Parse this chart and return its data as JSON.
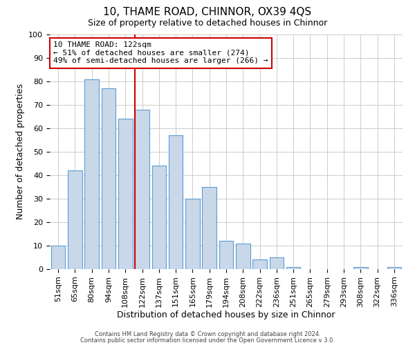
{
  "title": "10, THAME ROAD, CHINNOR, OX39 4QS",
  "subtitle": "Size of property relative to detached houses in Chinnor",
  "xlabel": "Distribution of detached houses by size in Chinnor",
  "ylabel": "Number of detached properties",
  "footer_line1": "Contains HM Land Registry data © Crown copyright and database right 2024.",
  "footer_line2": "Contains public sector information licensed under the Open Government Licence v 3.0.",
  "bar_labels": [
    "51sqm",
    "65sqm",
    "80sqm",
    "94sqm",
    "108sqm",
    "122sqm",
    "137sqm",
    "151sqm",
    "165sqm",
    "179sqm",
    "194sqm",
    "208sqm",
    "222sqm",
    "236sqm",
    "251sqm",
    "265sqm",
    "279sqm",
    "293sqm",
    "308sqm",
    "322sqm",
    "336sqm"
  ],
  "bar_values": [
    10,
    42,
    81,
    77,
    64,
    68,
    44,
    57,
    30,
    35,
    12,
    11,
    4,
    5,
    1,
    0,
    0,
    0,
    1,
    0,
    1
  ],
  "bar_color": "#c8d8e8",
  "bar_edge_color": "#5b9bd5",
  "vline_x_index": 5,
  "vline_color": "#cc0000",
  "annotation_line1": "10 THAME ROAD: 122sqm",
  "annotation_line2": "← 51% of detached houses are smaller (274)",
  "annotation_line3": "49% of semi-detached houses are larger (266) →",
  "annotation_box_color": "white",
  "annotation_box_edge_color": "#cc0000",
  "ylim": [
    0,
    100
  ],
  "yticks": [
    0,
    10,
    20,
    30,
    40,
    50,
    60,
    70,
    80,
    90,
    100
  ],
  "grid_color": "#cccccc",
  "background_color": "#ffffff",
  "title_fontsize": 11,
  "subtitle_fontsize": 9,
  "axis_label_fontsize": 9,
  "tick_fontsize": 8
}
